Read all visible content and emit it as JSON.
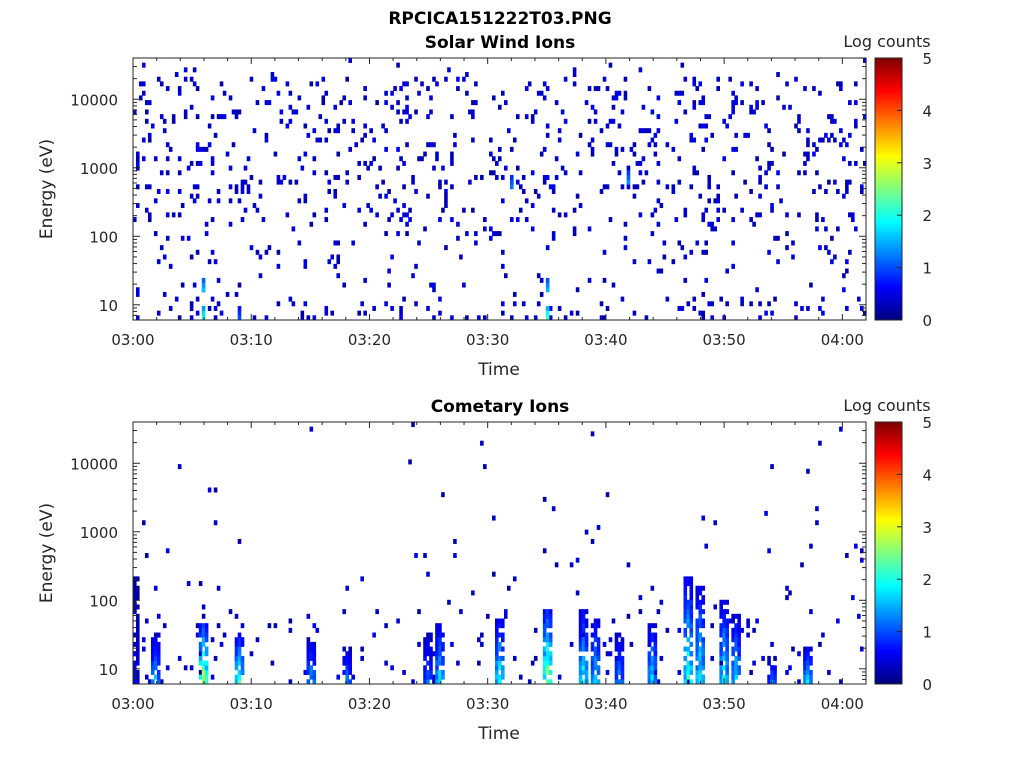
{
  "figure_title": "RPCICA151222T03.PNG",
  "colorbar": {
    "label": "Log counts",
    "range": [
      0,
      5
    ],
    "ticks": [
      "0",
      "1",
      "2",
      "3",
      "4",
      "5"
    ],
    "colormap": "jet"
  },
  "chart_data": [
    {
      "type": "heatmap",
      "title": "Solar Wind Ions",
      "xlabel": "Time",
      "ylabel": "Energy (eV)",
      "xlim": [
        "03:00",
        "04:02"
      ],
      "ylim": [
        6,
        40000
      ],
      "yscale": "log",
      "xticks": [
        "03:00",
        "03:10",
        "03:20",
        "03:30",
        "03:40",
        "03:50",
        "04:00"
      ],
      "yticks": [
        "10",
        "100",
        "1000",
        "10000"
      ],
      "value_label": "Log counts",
      "value_range": [
        0,
        5
      ],
      "background_level": 0.2,
      "dense_energy_range": [
        150,
        20000
      ],
      "hotspots": [
        {
          "time": "03:06",
          "energy": 8,
          "value": 2.0
        },
        {
          "time": "03:06",
          "energy": 20,
          "value": 1.6
        },
        {
          "time": "03:09",
          "energy": 8,
          "value": 1.0
        },
        {
          "time": "03:32",
          "energy": 600,
          "value": 1.2
        },
        {
          "time": "03:35",
          "energy": 8,
          "value": 2.2
        },
        {
          "time": "03:35",
          "energy": 20,
          "value": 1.5
        },
        {
          "time": "03:42",
          "energy": 700,
          "value": 1.3
        }
      ],
      "grid": false
    },
    {
      "type": "heatmap",
      "title": "Cometary Ions",
      "xlabel": "Time",
      "ylabel": "Energy (eV)",
      "xlim": [
        "03:00",
        "04:02"
      ],
      "ylim": [
        6,
        40000
      ],
      "yscale": "log",
      "xticks": [
        "03:00",
        "03:10",
        "03:20",
        "03:30",
        "03:40",
        "03:50",
        "04:00"
      ],
      "yticks": [
        "10",
        "100",
        "1000",
        "10000"
      ],
      "value_label": "Log counts",
      "value_range": [
        0,
        5
      ],
      "bursts": [
        {
          "time": "03:00",
          "top_energy": 200,
          "peak": 0.6
        },
        {
          "time": "03:02",
          "top_energy": 30,
          "peak": 1.6
        },
        {
          "time": "03:06",
          "top_energy": 40,
          "peak": 3.0
        },
        {
          "time": "03:09",
          "top_energy": 30,
          "peak": 2.3
        },
        {
          "time": "03:15",
          "top_energy": 25,
          "peak": 1.5
        },
        {
          "time": "03:18",
          "top_energy": 20,
          "peak": 1.3
        },
        {
          "time": "03:25",
          "top_energy": 30,
          "peak": 1.2
        },
        {
          "time": "03:26",
          "top_energy": 40,
          "peak": 1.8
        },
        {
          "time": "03:31",
          "top_energy": 50,
          "peak": 2.1
        },
        {
          "time": "03:35",
          "top_energy": 70,
          "peak": 2.9
        },
        {
          "time": "03:38",
          "top_energy": 70,
          "peak": 2.0
        },
        {
          "time": "03:39",
          "top_energy": 50,
          "peak": 1.8
        },
        {
          "time": "03:41",
          "top_energy": 30,
          "peak": 1.4
        },
        {
          "time": "03:44",
          "top_energy": 40,
          "peak": 1.8
        },
        {
          "time": "03:47",
          "top_energy": 200,
          "peak": 2.3
        },
        {
          "time": "03:48",
          "top_energy": 150,
          "peak": 2.0
        },
        {
          "time": "03:50",
          "top_energy": 100,
          "peak": 2.0
        },
        {
          "time": "03:51",
          "top_energy": 60,
          "peak": 1.8
        },
        {
          "time": "03:54",
          "top_energy": 15,
          "peak": 1.2
        },
        {
          "time": "03:57",
          "top_energy": 20,
          "peak": 1.8
        }
      ],
      "grid": false
    }
  ]
}
